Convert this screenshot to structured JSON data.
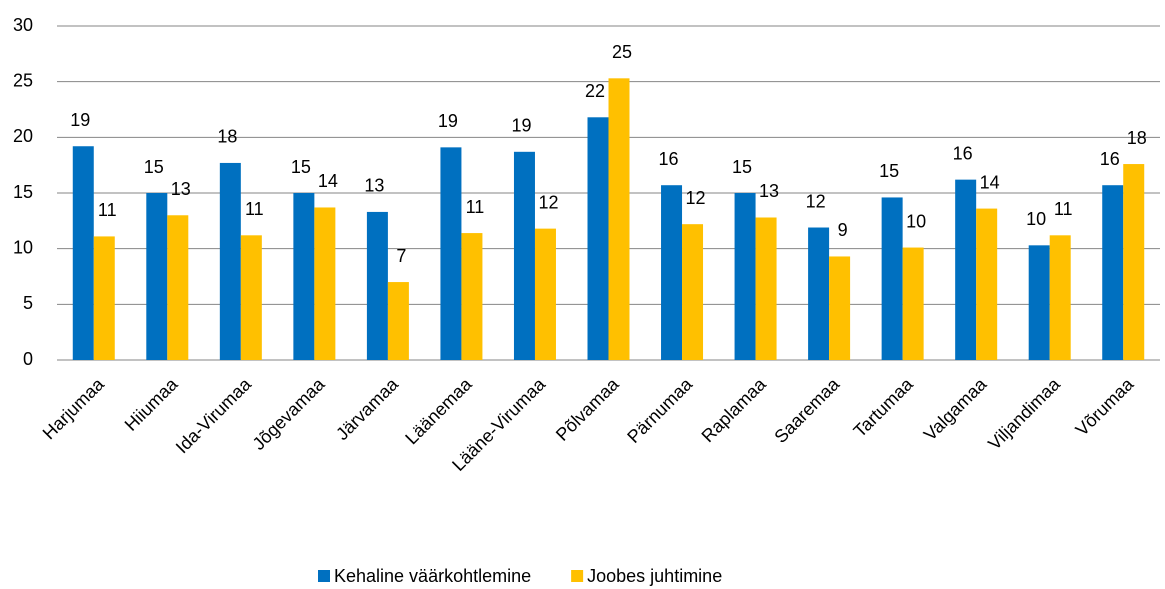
{
  "chart_data": {
    "type": "bar",
    "categories": [
      "Harjumaa",
      "Hiiumaa",
      "Ida-Virumaa",
      "Jõgevamaa",
      "Järvamaa",
      "Läänemaa",
      "Lääne-Virumaa",
      "Põlvamaa",
      "Pärnumaa",
      "Raplamaa",
      "Saaremaa",
      "Tartumaa",
      "Valgamaa",
      "Viljandimaa",
      "Võrumaa"
    ],
    "series": [
      {
        "name": "Kehaline väärkohtlemine",
        "color": "#0070c0",
        "values": [
          19.2,
          15.0,
          17.7,
          15.0,
          13.3,
          19.1,
          18.7,
          21.8,
          15.7,
          15.0,
          11.9,
          14.6,
          16.2,
          10.3,
          15.7
        ],
        "value_labels": [
          "19",
          "15",
          "18",
          "15",
          "13",
          "19",
          "19",
          "22",
          "16",
          "15",
          "12",
          "15",
          "16",
          "10",
          "16"
        ]
      },
      {
        "name": "Joobes juhtimine",
        "color": "#ffc000",
        "values": [
          11.1,
          13.0,
          11.2,
          13.7,
          7.0,
          11.4,
          11.8,
          25.3,
          12.2,
          12.8,
          9.3,
          10.1,
          13.6,
          11.2,
          17.6
        ],
        "value_labels": [
          "11",
          "13",
          "11",
          "14",
          "7",
          "11",
          "12",
          "25",
          "12",
          "13",
          "9",
          "10",
          "14",
          "11",
          "18"
        ]
      }
    ],
    "ylim": [
      0,
      30
    ],
    "yticks": [
      0,
      5,
      10,
      15,
      20,
      25,
      30
    ],
    "grid": true,
    "legend": "bottom"
  }
}
